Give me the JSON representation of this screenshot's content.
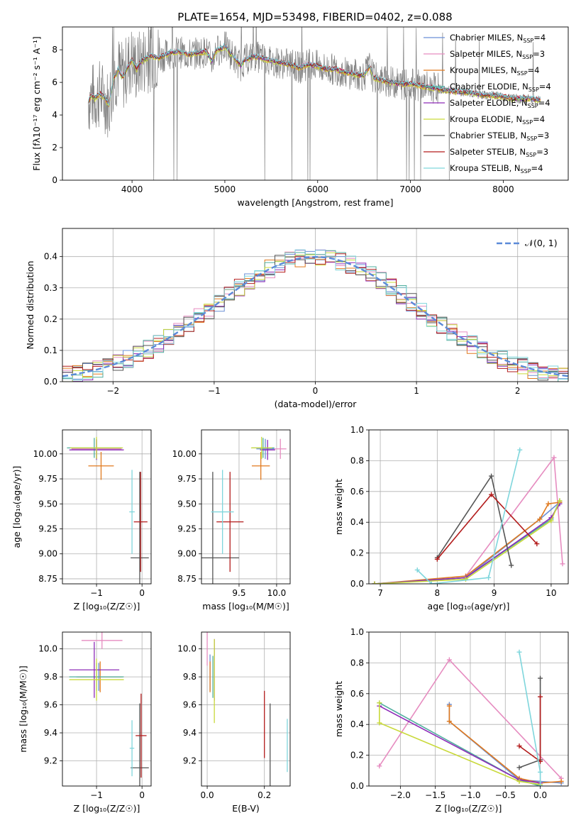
{
  "figure": {
    "title": "PLATE=1654, MJD=53498, FIBERID=0402, z=0.088"
  },
  "chart_data": [
    {
      "id": "spectrum",
      "type": "line",
      "xlabel": "wavelength [Angstrom, rest frame]",
      "ylabel": "Flux [fλ10⁻¹⁷ erg cm⁻² s⁻¹ A⁻¹]",
      "xlim": [
        3250,
        8700
      ],
      "ylim": [
        0,
        9.4
      ],
      "xticks": [
        4000,
        5000,
        6000,
        7000,
        8000
      ],
      "yticks": [
        0,
        2,
        4,
        6,
        8
      ],
      "grid": false,
      "legend_position": "top-right",
      "data_color": "#808080",
      "data_x": [
        3530,
        3560,
        3600,
        3650,
        3700,
        3750,
        3800,
        3850,
        3900,
        3950,
        4000,
        4050,
        4100,
        4200,
        4300,
        4400,
        4500,
        4600,
        4700,
        4800,
        4860,
        4900,
        5000,
        5100,
        5175,
        5200,
        5300,
        5400,
        5500,
        5600,
        5700,
        5800,
        5900,
        6000,
        6100,
        6200,
        6300,
        6400,
        6500,
        6563,
        6600,
        6700,
        6800,
        6900,
        7000,
        7100,
        7200,
        7300,
        7400,
        7500,
        7600,
        7700,
        7800,
        7900,
        8000,
        8100,
        8200,
        8300,
        8400
      ],
      "data_y": [
        4.8,
        5.2,
        5.0,
        5.3,
        5.1,
        4.6,
        6.2,
        6.8,
        6.3,
        6.9,
        7.4,
        6.8,
        7.3,
        7.6,
        7.5,
        7.8,
        7.9,
        7.7,
        7.8,
        7.9,
        7.3,
        7.9,
        8.2,
        7.5,
        7.0,
        7.3,
        7.6,
        7.5,
        7.3,
        7.2,
        7.1,
        6.9,
        7.1,
        7.0,
        6.8,
        6.8,
        6.6,
        6.5,
        6.4,
        7.0,
        6.3,
        6.1,
        6.0,
        5.9,
        5.9,
        5.8,
        5.7,
        5.6,
        5.5,
        5.4,
        5.4,
        5.3,
        5.2,
        5.2,
        5.1,
        5.0,
        5.0,
        5.0,
        4.9
      ],
      "series": [
        {
          "name": "Chabrier MILES, N_SSP=4",
          "label": "Chabrier MILES, N",
          "sub": "SSP",
          "suffix": "=4",
          "color": "#6a8fd6",
          "offset": 0.0
        },
        {
          "name": "Salpeter MILES, N_SSP=3",
          "label": "Salpeter MILES, N",
          "sub": "SSP",
          "suffix": "=3",
          "color": "#e68cc0",
          "offset": 0.05
        },
        {
          "name": "Kroupa MILES, N_SSP=4",
          "label": "Kroupa MILES, N",
          "sub": "SSP",
          "suffix": "=4",
          "color": "#e07a1f",
          "offset": -0.04
        },
        {
          "name": "Chabrier ELODIE, N_SSP=4",
          "label": "Chabrier ELODIE, N",
          "sub": "SSP",
          "suffix": "=4",
          "color": "#4fae9e",
          "offset": 0.02
        },
        {
          "name": "Salpeter ELODIE, N_SSP=4",
          "label": "Salpeter ELODIE, N",
          "sub": "SSP",
          "suffix": "=4",
          "color": "#8e2bb8",
          "offset": -0.02
        },
        {
          "name": "Kroupa ELODIE, N_SSP=4",
          "label": "Kroupa ELODIE, N",
          "sub": "SSP",
          "suffix": "=4",
          "color": "#c9d93a",
          "offset": -0.08
        },
        {
          "name": "Chabrier STELIB, N_SSP=3",
          "label": "Chabrier STELIB, N",
          "sub": "SSP",
          "suffix": "=3",
          "color": "#555555",
          "offset": 0.03
        },
        {
          "name": "Salpeter STELIB, N_SSP=3",
          "label": "Salpeter STELIB, N",
          "sub": "SSP",
          "suffix": "=3",
          "color": "#b31c1c",
          "offset": 0.06
        },
        {
          "name": "Kroupa STELIB, N_SSP=4",
          "label": "Kroupa STELIB, N",
          "sub": "SSP",
          "suffix": "=4",
          "color": "#7fd6dc",
          "offset": 0.08
        }
      ]
    },
    {
      "id": "residuals",
      "type": "step",
      "xlabel": "(data-model)/error",
      "ylabel": "Normed distribution",
      "xlim": [
        -2.5,
        2.5
      ],
      "ylim": [
        0,
        0.49
      ],
      "xticks": [
        -2,
        -1,
        0,
        1,
        2
      ],
      "yticks": [
        0.0,
        0.1,
        0.2,
        0.3,
        0.4
      ],
      "grid": true,
      "legend": [
        {
          "name": "𝒩(0, 1)",
          "color": "#5b8ad8",
          "style": "dashed"
        }
      ],
      "legend_position": "top-right",
      "bins": [
        -2.5,
        -2.4,
        -2.3,
        -2.2,
        -2.1,
        -2.0,
        -1.9,
        -1.8,
        -1.7,
        -1.6,
        -1.5,
        -1.4,
        -1.3,
        -1.2,
        -1.1,
        -1.0,
        -0.9,
        -0.8,
        -0.7,
        -0.6,
        -0.5,
        -0.4,
        -0.3,
        -0.2,
        -0.1,
        0.0,
        0.1,
        0.2,
        0.3,
        0.4,
        0.5,
        0.6,
        0.7,
        0.8,
        0.9,
        1.0,
        1.1,
        1.2,
        1.3,
        1.4,
        1.5,
        1.6,
        1.7,
        1.8,
        1.9,
        2.0,
        2.1,
        2.2,
        2.3,
        2.4,
        2.5
      ]
    },
    {
      "id": "age-vs-z",
      "type": "errorbar",
      "xlabel": "Z [log₁₀(Z/Z☉)]",
      "ylabel": "age  [log₁₀(age/yr)]",
      "xlim": [
        -1.75,
        0.2
      ],
      "ylim": [
        8.7,
        10.24
      ],
      "xticks": [
        -1,
        0
      ],
      "yticks": [
        8.75,
        9.0,
        9.25,
        9.5,
        9.75,
        10.0
      ],
      "grid": true,
      "points": [
        {
          "series": "Chabrier MILES",
          "x": -1.0,
          "y": 10.05,
          "xerr": 0.55,
          "yerr": 0.1
        },
        {
          "series": "Salpeter MILES",
          "x": -1.0,
          "y": 10.05,
          "xerr": 0.55,
          "yerr": 0.1
        },
        {
          "series": "Kroupa MILES",
          "x": -0.9,
          "y": 9.88,
          "xerr": 0.28,
          "yerr": 0.14
        },
        {
          "series": "Chabrier ELODIE",
          "x": -1.05,
          "y": 10.06,
          "xerr": 0.6,
          "yerr": 0.1
        },
        {
          "series": "Salpeter ELODIE",
          "x": -1.0,
          "y": 10.04,
          "xerr": 0.6,
          "yerr": 0.1
        },
        {
          "series": "Kroupa ELODIE",
          "x": -1.0,
          "y": 10.06,
          "xerr": 0.58,
          "yerr": 0.11
        },
        {
          "series": "Chabrier STELIB",
          "x": -0.05,
          "y": 8.96,
          "xerr": 0.2,
          "yerr": 0.86
        },
        {
          "series": "Salpeter STELIB",
          "x": -0.03,
          "y": 9.32,
          "xerr": 0.15,
          "yerr": 0.5
        },
        {
          "series": "Kroupa STELIB",
          "x": -0.22,
          "y": 9.42,
          "xerr": 0.06,
          "yerr": 0.42
        }
      ]
    },
    {
      "id": "age-vs-mass",
      "type": "errorbar",
      "xlabel": "mass [log₁₀(M/M☉)]",
      "ylabel": "",
      "xlim": [
        9.0,
        10.18
      ],
      "ylim": [
        8.7,
        10.24
      ],
      "xticks": [
        9.5,
        10.0
      ],
      "yticks": [
        8.75,
        9.0,
        9.25,
        9.5,
        9.75,
        10.0
      ],
      "grid": true,
      "points": [
        {
          "series": "Chabrier MILES",
          "x": 9.85,
          "y": 10.05,
          "xerr": 0.12,
          "yerr": 0.1
        },
        {
          "series": "Salpeter MILES",
          "x": 10.05,
          "y": 10.05,
          "xerr": 0.08,
          "yerr": 0.1
        },
        {
          "series": "Kroupa MILES",
          "x": 9.79,
          "y": 9.88,
          "xerr": 0.12,
          "yerr": 0.14
        },
        {
          "series": "Chabrier ELODIE",
          "x": 9.82,
          "y": 10.06,
          "xerr": 0.15,
          "yerr": 0.1
        },
        {
          "series": "Salpeter ELODIE",
          "x": 9.88,
          "y": 10.04,
          "xerr": 0.1,
          "yerr": 0.1
        },
        {
          "series": "Kroupa ELODIE",
          "x": 9.8,
          "y": 10.06,
          "xerr": 0.14,
          "yerr": 0.11
        },
        {
          "series": "Chabrier STELIB",
          "x": 9.15,
          "y": 8.96,
          "xerr": 0.35,
          "yerr": 0.86
        },
        {
          "series": "Salpeter STELIB",
          "x": 9.38,
          "y": 9.32,
          "xerr": 0.18,
          "yerr": 0.5
        },
        {
          "series": "Kroupa STELIB",
          "x": 9.28,
          "y": 9.42,
          "xerr": 0.15,
          "yerr": 0.42
        }
      ]
    },
    {
      "id": "weight-vs-age",
      "type": "line",
      "xlabel": "age  [log₁₀(age/yr)]",
      "ylabel": "mass weight",
      "xlim": [
        6.8,
        10.3
      ],
      "ylim": [
        0,
        1.0
      ],
      "xticks": [
        7,
        8,
        9,
        10
      ],
      "yticks": [
        0.0,
        0.2,
        0.4,
        0.6,
        0.8,
        1.0
      ],
      "grid": true,
      "series": [
        {
          "name": "Chabrier MILES",
          "x": [
            6.9,
            8.5,
            9.8,
            10.15
          ],
          "y": [
            0.0,
            0.04,
            0.42,
            0.53
          ]
        },
        {
          "name": "Salpeter MILES",
          "x": [
            8.5,
            10.05,
            10.2
          ],
          "y": [
            0.05,
            0.82,
            0.13
          ]
        },
        {
          "name": "Kroupa MILES",
          "x": [
            6.9,
            8.5,
            9.8,
            9.95,
            10.15
          ],
          "y": [
            0.0,
            0.05,
            0.42,
            0.52,
            0.53
          ]
        },
        {
          "name": "Chabrier ELODIE",
          "x": [
            6.9,
            8.5,
            10.0,
            10.15
          ],
          "y": [
            0.0,
            0.04,
            0.42,
            0.54
          ]
        },
        {
          "name": "Salpeter ELODIE",
          "x": [
            6.9,
            8.5,
            10.0,
            10.15
          ],
          "y": [
            0.0,
            0.04,
            0.43,
            0.52
          ]
        },
        {
          "name": "Kroupa ELODIE",
          "x": [
            6.9,
            8.5,
            10.0,
            10.15
          ],
          "y": [
            0.0,
            0.03,
            0.41,
            0.54
          ]
        },
        {
          "name": "Chabrier STELIB",
          "x": [
            8.0,
            8.95,
            9.3
          ],
          "y": [
            0.17,
            0.7,
            0.12
          ]
        },
        {
          "name": "Salpeter STELIB",
          "x": [
            8.0,
            8.95,
            9.75
          ],
          "y": [
            0.16,
            0.58,
            0.26
          ]
        },
        {
          "name": "Kroupa STELIB",
          "x": [
            7.65,
            7.9,
            8.9,
            9.45
          ],
          "y": [
            0.09,
            0.0,
            0.04,
            0.87
          ]
        }
      ]
    },
    {
      "id": "mass-vs-z",
      "type": "errorbar",
      "xlabel": "Z [log₁₀(Z/Z☉)]",
      "ylabel": "mass [log₁₀(M/M☉)]",
      "xlim": [
        -1.75,
        0.2
      ],
      "ylim": [
        9.02,
        10.12
      ],
      "xticks": [
        -1,
        0
      ],
      "yticks": [
        9.2,
        9.4,
        9.6,
        9.8,
        10.0
      ],
      "grid": true,
      "points": [
        {
          "series": "Chabrier MILES",
          "x": -0.95,
          "y": 9.8,
          "xerr": 0.5,
          "yerr": 0.1
        },
        {
          "series": "Salpeter MILES",
          "x": -0.88,
          "y": 10.06,
          "xerr": 0.45,
          "yerr": 0.06
        },
        {
          "series": "Kroupa MILES",
          "x": -0.92,
          "y": 9.8,
          "xerr": 0.5,
          "yerr": 0.11
        },
        {
          "series": "Chabrier ELODIE",
          "x": -1.0,
          "y": 9.8,
          "xerr": 0.6,
          "yerr": 0.1
        },
        {
          "series": "Salpeter ELODIE",
          "x": -1.05,
          "y": 9.85,
          "xerr": 0.55,
          "yerr": 0.2
        },
        {
          "series": "Kroupa ELODIE",
          "x": -1.0,
          "y": 9.78,
          "xerr": 0.6,
          "yerr": 0.15
        },
        {
          "series": "Chabrier STELIB",
          "x": -0.05,
          "y": 9.15,
          "xerr": 0.2,
          "yerr": 0.46
        },
        {
          "series": "Salpeter STELIB",
          "x": -0.02,
          "y": 9.38,
          "xerr": 0.12,
          "yerr": 0.3
        },
        {
          "series": "Kroupa STELIB",
          "x": -0.22,
          "y": 9.29,
          "xerr": 0.05,
          "yerr": 0.2
        }
      ]
    },
    {
      "id": "mass-vs-ebv",
      "type": "errorbar",
      "xlabel": "E(B-V)",
      "ylabel": "",
      "xlim": [
        -0.02,
        0.29
      ],
      "ylim": [
        9.02,
        10.12
      ],
      "xticks": [
        0.0,
        0.2
      ],
      "yticks": [
        9.2,
        9.4,
        9.6,
        9.8,
        10.0
      ],
      "grid": true,
      "points": [
        {
          "series": "Chabrier MILES",
          "x": 0.01,
          "y": 9.83,
          "xerr": 0.0,
          "yerr": 0.13
        },
        {
          "series": "Salpeter MILES",
          "x": 0.0,
          "y": 10.0,
          "xerr": 0.0,
          "yerr": 0.12
        },
        {
          "series": "Kroupa MILES",
          "x": 0.01,
          "y": 9.8,
          "xerr": 0.0,
          "yerr": 0.11
        },
        {
          "series": "Chabrier ELODIE",
          "x": 0.02,
          "y": 9.8,
          "xerr": 0.0,
          "yerr": 0.15
        },
        {
          "series": "Salpeter ELODIE",
          "x": 0.025,
          "y": 9.85,
          "xerr": 0.0,
          "yerr": 0.22
        },
        {
          "series": "Kroupa ELODIE",
          "x": 0.025,
          "y": 9.77,
          "xerr": 0.0,
          "yerr": 0.3
        },
        {
          "series": "Chabrier STELIB",
          "x": 0.22,
          "y": 9.15,
          "xerr": 0.0,
          "yerr": 0.46
        },
        {
          "series": "Salpeter STELIB",
          "x": 0.2,
          "y": 9.46,
          "xerr": 0.0,
          "yerr": 0.24
        },
        {
          "series": "Kroupa STELIB",
          "x": 0.28,
          "y": 9.31,
          "xerr": 0.0,
          "yerr": 0.19
        }
      ]
    },
    {
      "id": "weight-vs-z",
      "type": "line",
      "xlabel": "Z [log₁₀(Z/Z☉)]",
      "ylabel": "mass weight",
      "xlim": [
        -2.45,
        0.4
      ],
      "ylim": [
        0,
        1.0
      ],
      "xticks": [
        -2.0,
        -1.5,
        -1.0,
        -0.5,
        0.0
      ],
      "yticks": [
        0.0,
        0.2,
        0.4,
        0.6,
        0.8,
        1.0
      ],
      "grid": true,
      "series": [
        {
          "name": "Chabrier MILES",
          "x": [
            -1.3,
            -1.3,
            -0.3,
            0.3
          ],
          "y": [
            0.53,
            0.42,
            0.04,
            0.02
          ]
        },
        {
          "name": "Salpeter MILES",
          "x": [
            -2.3,
            -1.3,
            0.3
          ],
          "y": [
            0.13,
            0.82,
            0.05
          ]
        },
        {
          "name": "Kroupa MILES",
          "x": [
            -1.3,
            -1.3,
            -0.3,
            0.0,
            0.3
          ],
          "y": [
            0.52,
            0.42,
            0.05,
            0.02,
            0.03
          ]
        },
        {
          "name": "Chabrier ELODIE",
          "x": [
            -2.3,
            -0.3,
            0.0
          ],
          "y": [
            0.54,
            0.04,
            0.0
          ]
        },
        {
          "name": "Salpeter ELODIE",
          "x": [
            -2.3,
            -0.3,
            0.0
          ],
          "y": [
            0.52,
            0.04,
            0.02
          ]
        },
        {
          "name": "Kroupa ELODIE",
          "x": [
            -2.3,
            -2.3,
            -0.3,
            0.0
          ],
          "y": [
            0.54,
            0.41,
            0.03,
            0.01
          ]
        },
        {
          "name": "Chabrier STELIB",
          "x": [
            -0.3,
            0.0,
            0.0
          ],
          "y": [
            0.12,
            0.17,
            0.7
          ]
        },
        {
          "name": "Salpeter STELIB",
          "x": [
            -0.3,
            0.0,
            0.0
          ],
          "y": [
            0.26,
            0.16,
            0.58
          ]
        },
        {
          "name": "Kroupa STELIB",
          "x": [
            -0.3,
            0.0,
            0.0
          ],
          "y": [
            0.87,
            0.09,
            0.0
          ]
        }
      ]
    }
  ]
}
